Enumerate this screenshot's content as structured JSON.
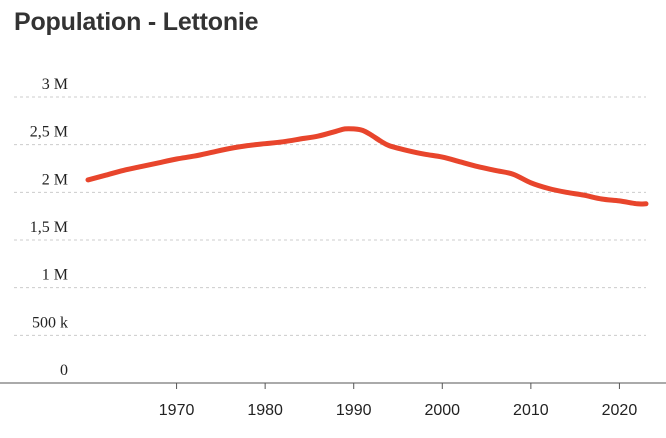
{
  "chart_data": {
    "type": "line",
    "title": "Population - Lettonie",
    "xlabel": "",
    "ylabel": "",
    "xlim": [
      1960,
      2023
    ],
    "ylim": [
      0,
      3000000
    ],
    "y_ticks": [
      {
        "value": 0,
        "label": "0"
      },
      {
        "value": 500000,
        "label": "500 k"
      },
      {
        "value": 1000000,
        "label": "1 M"
      },
      {
        "value": 1500000,
        "label": "1,5 M"
      },
      {
        "value": 2000000,
        "label": "2 M"
      },
      {
        "value": 2500000,
        "label": "2,5 M"
      },
      {
        "value": 3000000,
        "label": "3 M"
      }
    ],
    "x_ticks": [
      {
        "value": 1970,
        "label": "1970"
      },
      {
        "value": 1980,
        "label": "1980"
      },
      {
        "value": 1990,
        "label": "1990"
      },
      {
        "value": 2000,
        "label": "2000"
      },
      {
        "value": 2010,
        "label": "2010"
      },
      {
        "value": 2020,
        "label": "2020"
      }
    ],
    "grid": true,
    "series": [
      {
        "color": "#e8452c",
        "x": [
          1960,
          1962,
          1964,
          1966,
          1968,
          1970,
          1972,
          1974,
          1976,
          1978,
          1980,
          1982,
          1984,
          1986,
          1988,
          1989,
          1990,
          1991,
          1992,
          1993,
          1994,
          1996,
          1998,
          2000,
          2002,
          2004,
          2006,
          2008,
          2010,
          2012,
          2014,
          2016,
          2018,
          2020,
          2022,
          2023
        ],
        "y": [
          2130000,
          2180000,
          2230000,
          2270000,
          2310000,
          2350000,
          2380000,
          2420000,
          2460000,
          2490000,
          2510000,
          2530000,
          2560000,
          2590000,
          2640000,
          2665000,
          2665000,
          2650000,
          2600000,
          2540000,
          2490000,
          2440000,
          2400000,
          2370000,
          2320000,
          2270000,
          2230000,
          2190000,
          2100000,
          2040000,
          2000000,
          1970000,
          1930000,
          1910000,
          1880000,
          1880000
        ]
      }
    ]
  }
}
